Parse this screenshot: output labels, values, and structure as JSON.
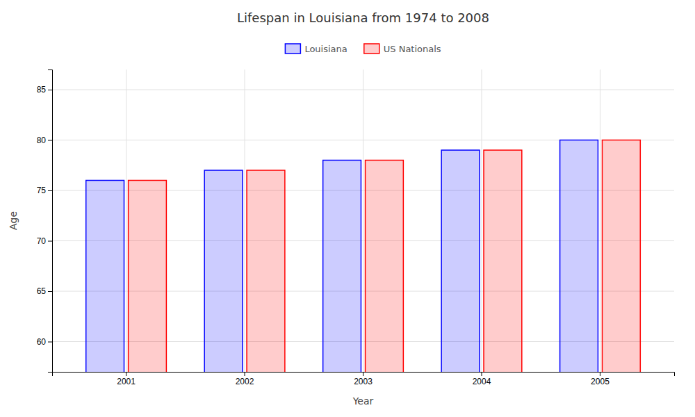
{
  "chart_data": {
    "type": "bar",
    "title": "Lifespan in Louisiana from 1974 to 2008",
    "x_label": "Year",
    "y_label": "Age",
    "categories": [
      "2001",
      "2002",
      "2003",
      "2004",
      "2005"
    ],
    "series": [
      {
        "name": "Louisiana",
        "color": "#0000ff",
        "values": [
          76,
          77,
          78,
          79,
          80
        ]
      },
      {
        "name": "US Nationals",
        "color": "#ff0000",
        "values": [
          76,
          77,
          78,
          79,
          80
        ]
      }
    ],
    "ylim": [
      57,
      87
    ],
    "yticks": [
      60,
      65,
      70,
      75,
      80,
      85
    ],
    "grid": true,
    "legend": "top"
  }
}
